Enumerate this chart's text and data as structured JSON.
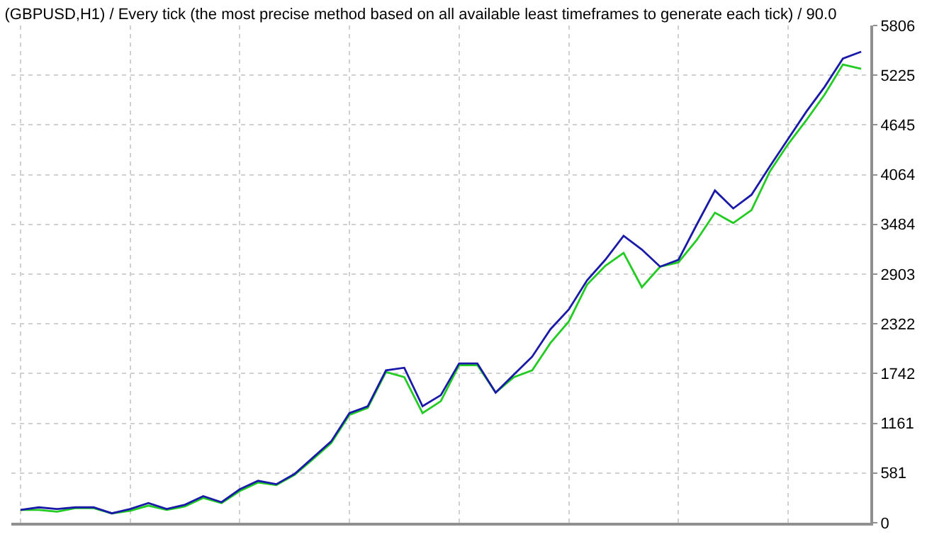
{
  "chart_data": {
    "type": "line",
    "title": "(GBPUSD,H1) / Every tick (the most precise method based on all available least timeframes to generate each tick) / 90.0",
    "categories": [
      null,
      null,
      null,
      null,
      null,
      null,
      null,
      null,
      null,
      null,
      null,
      null,
      null,
      null,
      null,
      null,
      null,
      null,
      null,
      null,
      null,
      null,
      null,
      null,
      null,
      null,
      null,
      null,
      null,
      null,
      null,
      null,
      null,
      null,
      null,
      null,
      null,
      null,
      null,
      null,
      null,
      null,
      null,
      null,
      null,
      null,
      null
    ],
    "series": [
      {
        "color": "#22cc22",
        "values": [
          150,
          150,
          130,
          170,
          170,
          110,
          140,
          200,
          150,
          190,
          290,
          230,
          370,
          470,
          440,
          560,
          740,
          930,
          1260,
          1340,
          1760,
          1700,
          1280,
          1420,
          1840,
          1840,
          1520,
          1700,
          1780,
          2100,
          2350,
          2780,
          3000,
          3150,
          2750,
          2990,
          3040,
          3300,
          3620,
          3500,
          3650,
          4100,
          4420,
          4700,
          5000,
          5350,
          5300
        ]
      },
      {
        "color": "#1a1aa8",
        "values": [
          150,
          180,
          160,
          180,
          180,
          110,
          160,
          230,
          160,
          210,
          310,
          240,
          390,
          490,
          450,
          570,
          760,
          950,
          1280,
          1360,
          1780,
          1810,
          1360,
          1490,
          1860,
          1860,
          1520,
          1730,
          1940,
          2260,
          2490,
          2830,
          3070,
          3350,
          3190,
          2990,
          3070,
          3480,
          3880,
          3670,
          3830,
          4160,
          4480,
          4800,
          5090,
          5420,
          5500
        ]
      }
    ],
    "ylim": [
      0,
      5806
    ],
    "yticks": [
      0,
      581,
      1161,
      1742,
      2322,
      2903,
      3484,
      4064,
      4645,
      5225,
      5806
    ],
    "grid": true,
    "marker": "none",
    "line_style": "solid",
    "tick_labels": "y"
  }
}
